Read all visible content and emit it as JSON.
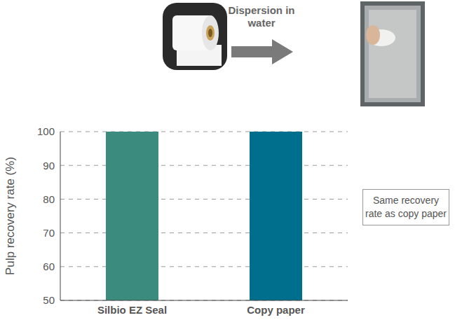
{
  "chart_data": {
    "type": "bar",
    "categories": [
      "Silbio EZ Seal",
      "Copy paper"
    ],
    "values": [
      100,
      100
    ],
    "colors": [
      "#3b8b7f",
      "#006f8e"
    ],
    "ylim": [
      50,
      100
    ],
    "yticks": [
      50,
      60,
      70,
      80,
      90,
      100
    ],
    "grid": true,
    "y_label": "Pulp recovery rate (%)",
    "annotations": [
      "Dispersion in water",
      "Same recovery rate as copy paper"
    ]
  }
}
